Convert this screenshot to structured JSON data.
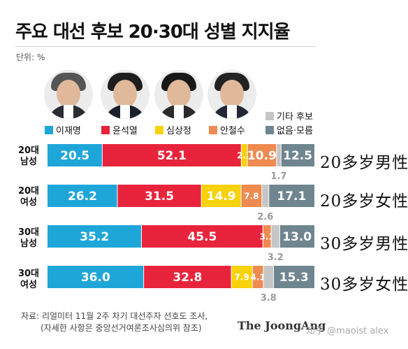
{
  "title": "주요 대선 후보 20·30대 성별 지지율",
  "unit": "단위: %",
  "candidates": [
    {
      "name": "이재명",
      "hair": "#555555",
      "suit": "#2b2b33"
    },
    {
      "name": "윤석열",
      "hair": "#1e1e1e",
      "suit": "#1b1f2c"
    },
    {
      "name": "심상정",
      "hair": "#181818",
      "suit": "#2a2a2a"
    },
    {
      "name": "안철수",
      "hair": "#222222",
      "suit": "#232636"
    }
  ],
  "legend": [
    {
      "label": "이재명",
      "color": "#1fa6d9"
    },
    {
      "label": "윤석열",
      "color": "#e8243c"
    },
    {
      "label": "심상정",
      "color": "#f8d20a"
    },
    {
      "label": "안철수",
      "color": "#ef8a50"
    },
    {
      "label": "기타 후보",
      "color": "#c6c6c6"
    },
    {
      "label": "없음·모름",
      "color": "#6f858f"
    }
  ],
  "chart_data": {
    "type": "bar",
    "stacked": true,
    "orientation": "horizontal",
    "title": "주요 대선 후보 20·30대 성별 지지율",
    "unit": "%",
    "series_names": [
      "이재명",
      "윤석열",
      "심상정",
      "안철수",
      "기타 후보",
      "없음·모름"
    ],
    "colors": [
      "#1fa6d9",
      "#e8243c",
      "#f8d20a",
      "#ef8a50",
      "#c6c6c6",
      "#6f858f"
    ],
    "rows": [
      {
        "label_line1": "20대",
        "label_line2": "남성",
        "values": [
          20.5,
          52.1,
          2.3,
          10.9,
          1.7,
          12.5
        ],
        "labels": [
          "20.5",
          "52.1",
          "2.3",
          "10.9",
          "1.7",
          "12.5"
        ]
      },
      {
        "label_line1": "20대",
        "label_line2": "여성",
        "values": [
          26.2,
          31.5,
          14.9,
          7.8,
          2.6,
          17.1
        ],
        "labels": [
          "26.2",
          "31.5",
          "14.9",
          "7.8",
          "2.6",
          "17.1"
        ]
      },
      {
        "label_line1": "30대",
        "label_line2": "남성",
        "values": [
          35.2,
          45.5,
          0,
          3.1,
          3.2,
          13.0
        ],
        "labels": [
          "35.2",
          "45.5",
          "",
          "3.1",
          "3.2",
          "13.0"
        ]
      },
      {
        "label_line1": "30대",
        "label_line2": "여성",
        "values": [
          36.0,
          32.8,
          7.9,
          4.1,
          3.8,
          15.3
        ],
        "labels": [
          "36.0",
          "32.8",
          "7.9",
          "4.1",
          "3.8",
          "15.3"
        ]
      }
    ]
  },
  "annotations": [
    "20多岁男性",
    "20多岁女性",
    "30多岁男性",
    "30多岁女性"
  ],
  "source_line1": "자료: 리얼미터 11월 2주 차기 대선주자 선호도 조사,",
  "source_line2": "(자세한 사항은 중앙선거여론조사심의위 참조)",
  "brand": "The JoongAng",
  "watermark": "知乎 @maoist alex"
}
